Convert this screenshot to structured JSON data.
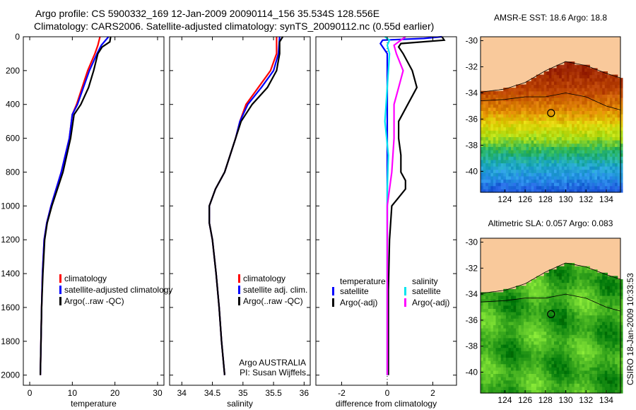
{
  "title": {
    "line1": "Argo profile: CS 5900332_169 12-Jan-2009 20090114_156 35.534S 128.556E",
    "line2": "Climatology: CARS2006. Satellite-adjusted climatology: synTS_20090112.nc (0.55d earlier)"
  },
  "credit": "CSIRO 18-Jan-2009 10:33:53",
  "colors": {
    "climatology": "#ff0000",
    "satellite": "#0000ff",
    "argo": "#000000",
    "sal_satellite": "#00e5ee",
    "sal_argo": "#ff00ff",
    "land": "#f9c99b"
  },
  "chart_data": [
    {
      "type": "line",
      "id": "temperature",
      "xlabel": "temperature",
      "ylabel": "",
      "xlim": [
        -1.5,
        31.5
      ],
      "ylim": [
        0,
        2060
      ],
      "y_reversed": true,
      "xticks": [
        0,
        10,
        20,
        30
      ],
      "yticks": [
        0,
        200,
        400,
        600,
        800,
        1000,
        1200,
        1400,
        1600,
        1800,
        2000
      ],
      "legend": [
        "climatology",
        "satellite-adjusted climatology",
        "Argo(..raw -QC)"
      ],
      "series": [
        {
          "name": "climatology",
          "color": "#ff0000",
          "depth": [
            0,
            50,
            100,
            200,
            300,
            400,
            460,
            600,
            800,
            1000,
            1100,
            1200,
            1400,
            1600,
            2000
          ],
          "values": [
            16.5,
            16,
            15.3,
            13.6,
            12.3,
            11,
            10,
            9.3,
            7.4,
            5,
            4,
            3.4,
            3,
            2.8,
            2.5
          ]
        },
        {
          "name": "satellite-adjusted climatology",
          "color": "#0000ff",
          "depth": [
            0,
            50,
            100,
            200,
            300,
            400,
            460,
            600,
            800,
            1000,
            1100,
            1200,
            1400,
            1600,
            2000
          ],
          "values": [
            18.5,
            16.8,
            15.8,
            14,
            12.6,
            11.2,
            10,
            9.3,
            7.4,
            5,
            4,
            3.4,
            3,
            2.8,
            2.5
          ]
        },
        {
          "name": "Argo(..raw -QC)",
          "color": "#000000",
          "depth": [
            0,
            30,
            60,
            100,
            200,
            300,
            400,
            460,
            600,
            800,
            1000,
            1100,
            1200,
            1400,
            1600,
            2000
          ],
          "values": [
            19,
            18.8,
            17,
            16,
            15,
            13.8,
            12,
            10.4,
            9.6,
            7.8,
            5.2,
            4.1,
            3.5,
            3.1,
            2.8,
            2.5
          ]
        }
      ]
    },
    {
      "type": "line",
      "id": "salinity",
      "xlabel": "salinity",
      "xlim": [
        33.8,
        36.1
      ],
      "ylim": [
        0,
        2060
      ],
      "y_reversed": true,
      "xticks": [
        34,
        34.5,
        35,
        35.5,
        36
      ],
      "legend": [
        "climatology",
        "satellite adj. clim.",
        "Argo(..raw -QC)"
      ],
      "annotation": [
        "Argo AUSTRALIA",
        "PI: Susan Wijffels"
      ],
      "series": [
        {
          "name": "climatology",
          "color": "#ff0000",
          "depth": [
            0,
            100,
            200,
            300,
            400,
            500,
            600,
            800,
            900,
            1000,
            1100,
            1200,
            1400,
            1600,
            1800,
            2000
          ],
          "values": [
            35.55,
            35.55,
            35.45,
            35.25,
            35.05,
            34.95,
            34.88,
            34.7,
            34.55,
            34.45,
            34.45,
            34.5,
            34.56,
            34.61,
            34.65,
            34.7
          ]
        },
        {
          "name": "satellite adj. clim.",
          "color": "#0000ff",
          "depth": [
            0,
            100,
            200,
            300,
            400,
            500,
            600,
            800,
            900,
            1000,
            1100,
            1200,
            1400,
            1600,
            1800,
            2000
          ],
          "values": [
            35.6,
            35.58,
            35.5,
            35.3,
            35.08,
            34.95,
            34.88,
            34.7,
            34.55,
            34.45,
            34.45,
            34.5,
            34.56,
            34.61,
            34.65,
            34.7
          ]
        },
        {
          "name": "Argo(..raw -QC)",
          "color": "#000000",
          "depth": [
            0,
            30,
            100,
            200,
            300,
            400,
            500,
            600,
            800,
            900,
            1000,
            1100,
            1200,
            1400,
            1600,
            1800,
            2000
          ],
          "values": [
            35.65,
            35.6,
            35.6,
            35.55,
            35.4,
            35.15,
            34.97,
            34.88,
            34.7,
            34.55,
            34.45,
            34.45,
            34.5,
            34.56,
            34.61,
            34.65,
            34.7
          ]
        }
      ]
    },
    {
      "type": "line",
      "id": "difference",
      "xlabel": "difference from climatology",
      "xlim": [
        -3.13,
        3.04
      ],
      "ylim": [
        0,
        2060
      ],
      "y_reversed": true,
      "xticks": [
        -2,
        0,
        2
      ],
      "legend_headers": [
        "temperature",
        "salinity"
      ],
      "legend": [
        "satellite",
        "Argo(-adj)",
        "satellite",
        "Argo(-adj)"
      ],
      "series": [
        {
          "name": "temperature satellite",
          "color": "#0000ff",
          "depth": [
            0,
            10,
            20,
            40,
            100,
            300,
            600,
            1000,
            2000
          ],
          "values": [
            2.4,
            1.6,
            -0.2,
            -0.3,
            0,
            0,
            0,
            0,
            0
          ]
        },
        {
          "name": "temperature Argo(-adj)",
          "color": "#000000",
          "depth": [
            0,
            20,
            40,
            60,
            100,
            200,
            300,
            400,
            500,
            600,
            700,
            800,
            850,
            900,
            950,
            1000,
            1200,
            1500,
            2000
          ],
          "values": [
            2.4,
            2.5,
            0.6,
            0.5,
            0.7,
            1.1,
            1.3,
            0.9,
            0.5,
            0.5,
            0.6,
            0.6,
            0.8,
            0.8,
            0.5,
            0.2,
            0.1,
            0.05,
            0.05
          ]
        },
        {
          "name": "salinity satellite",
          "color": "#00e5ee",
          "depth": [
            0,
            20,
            50,
            100,
            300,
            500,
            700,
            900,
            1000,
            1500,
            2000
          ],
          "values": [
            -0.1,
            0.1,
            0,
            0.1,
            0,
            -0.1,
            0.05,
            0,
            0,
            0,
            0
          ]
        },
        {
          "name": "salinity Argo(-adj)",
          "color": "#ff00ff",
          "depth": [
            0,
            20,
            50,
            100,
            200,
            300,
            400,
            600,
            800,
            900,
            1000,
            1200,
            2000
          ],
          "values": [
            0.8,
            0.6,
            0.3,
            0.4,
            0.7,
            0.5,
            0.3,
            0.3,
            0.2,
            0.1,
            0,
            0,
            0
          ]
        }
      ]
    },
    {
      "type": "heatmap",
      "id": "sst-map",
      "title": "AMSR-E SST: 18.6 Argo: 18.8",
      "xlim": [
        121.6,
        135.4
      ],
      "ylim": [
        -41.6,
        -29.7
      ],
      "xticks": [
        124,
        126,
        128,
        130,
        132,
        134
      ],
      "yticks": [
        -30,
        -32,
        -34,
        -36,
        -38,
        -40
      ],
      "argo_position": [
        128.556,
        -35.534
      ]
    },
    {
      "type": "heatmap",
      "id": "sla-map",
      "title": "Altimetric SLA: 0.057 Argo: 0.083",
      "xlim": [
        121.6,
        135.4
      ],
      "ylim": [
        -41.6,
        -29.7
      ],
      "xticks": [
        124,
        126,
        128,
        130,
        132,
        134
      ],
      "yticks": [
        -30,
        -32,
        -34,
        -36,
        -38,
        -40
      ],
      "argo_position": [
        128.556,
        -35.534
      ]
    }
  ]
}
